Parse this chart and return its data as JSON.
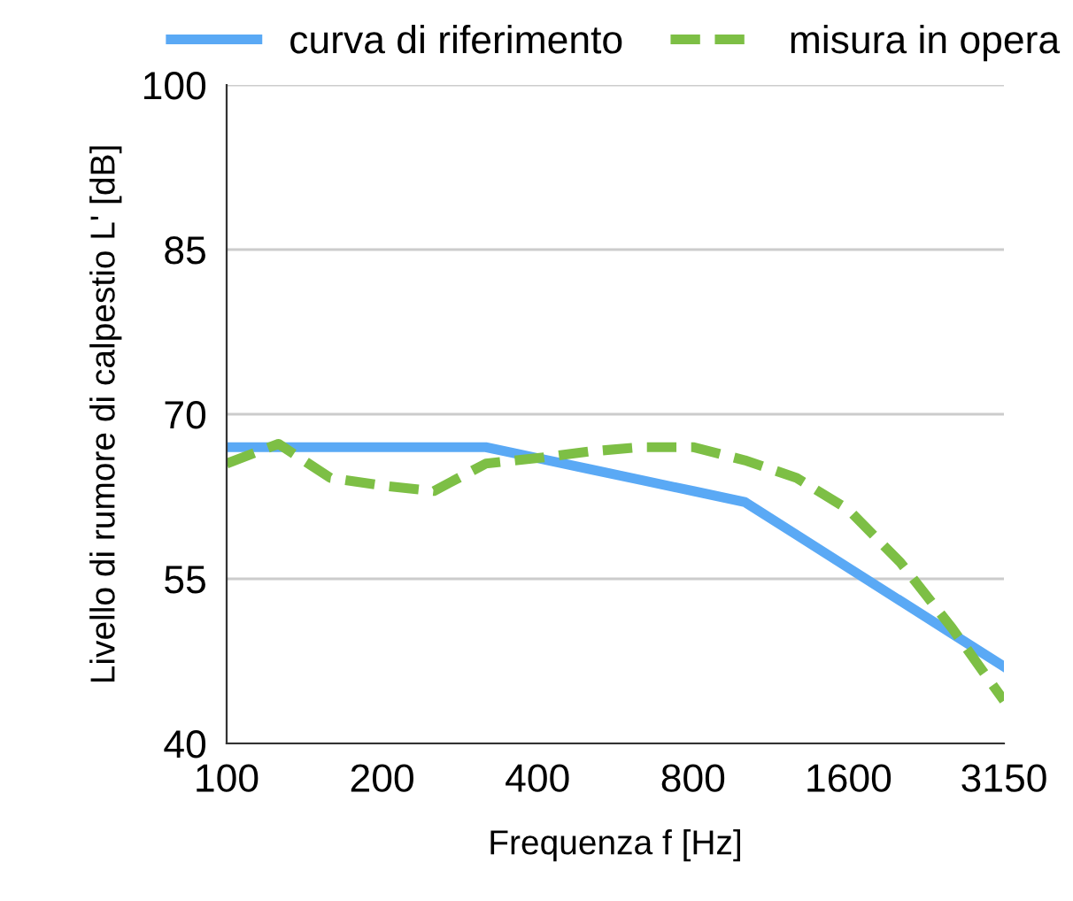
{
  "chart_data": {
    "type": "line",
    "xlabel": "Frequenza f [Hz]",
    "ylabel": "Livello di rumore di calpestio L' [dB]",
    "categories": [
      "100",
      null,
      null,
      "200",
      null,
      null,
      "400",
      null,
      null,
      "800",
      null,
      null,
      "1600",
      null,
      null,
      "3150"
    ],
    "series": [
      {
        "name": "curva di riferimento",
        "color": "#5aa9f5",
        "line_style": "solid",
        "values": [
          67,
          67,
          67,
          67,
          67,
          67,
          66,
          65,
          64,
          63,
          62,
          59,
          56,
          53,
          50,
          47
        ]
      },
      {
        "name": "misura in opera",
        "color": "#7dbf45",
        "line_style": "dashed",
        "values": [
          65.5,
          67.3,
          64.2,
          63.5,
          63,
          65.5,
          66,
          66.6,
          67,
          67,
          65.8,
          64.2,
          61.3,
          56.5,
          50.5,
          43.9
        ]
      }
    ],
    "ylim": [
      40,
      100
    ],
    "yticks": [
      40,
      55,
      70,
      85,
      100
    ],
    "grid": "y",
    "legend": "top",
    "marker": "none"
  }
}
